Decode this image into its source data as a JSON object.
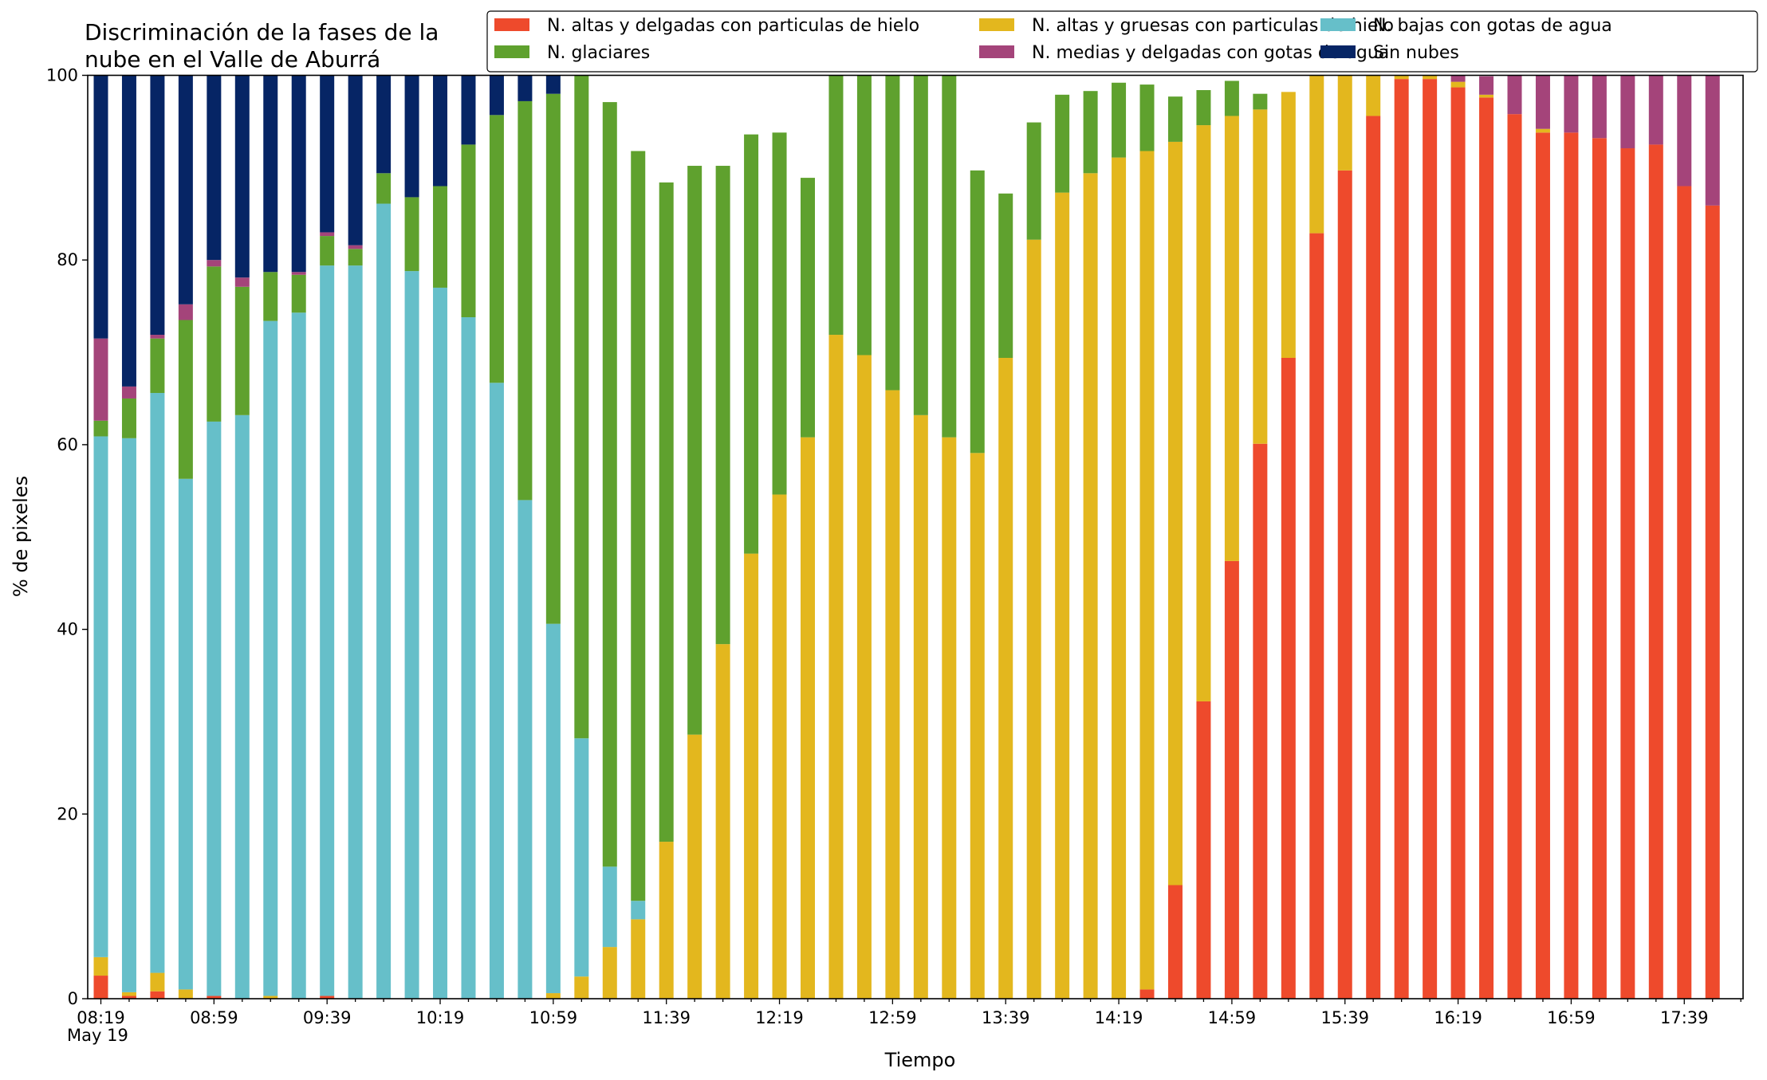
{
  "chart_data": {
    "type": "bar",
    "stacked": true,
    "title": [
      "Discriminación de la fases de la",
      "nube en el Valle de Aburrá"
    ],
    "xlabel": "Tiempo",
    "ylabel": "% de pixeles",
    "ylim": [
      0,
      100
    ],
    "yticks": [
      0,
      20,
      40,
      60,
      80,
      100
    ],
    "xtick_labels": [
      "08:19",
      "08:59",
      "09:39",
      "10:19",
      "10:59",
      "11:39",
      "12:19",
      "12:59",
      "13:39",
      "14:19",
      "14:59",
      "15:39",
      "16:19",
      "16:59",
      "17:39"
    ],
    "xtick_date": "May 19",
    "legend_position": "top-right",
    "grid": false,
    "categories": [
      "08:19",
      "08:29",
      "08:39",
      "08:49",
      "08:59",
      "09:09",
      "09:19",
      "09:29",
      "09:39",
      "09:49",
      "09:59",
      "10:09",
      "10:19",
      "10:29",
      "10:39",
      "10:49",
      "10:59",
      "11:09",
      "11:19",
      "11:29",
      "11:39",
      "11:49",
      "11:59",
      "12:09",
      "12:19",
      "12:29",
      "12:39",
      "12:49",
      "12:59",
      "13:09",
      "13:19",
      "13:29",
      "13:39",
      "13:49",
      "13:59",
      "14:09",
      "14:19",
      "14:29",
      "14:39",
      "14:49",
      "14:59",
      "15:09",
      "15:19",
      "15:29",
      "15:39",
      "15:49",
      "15:59",
      "16:09",
      "16:19",
      "16:29",
      "16:39",
      "16:49",
      "16:59",
      "17:09",
      "17:19",
      "17:29",
      "17:39",
      "17:49"
    ],
    "series": [
      {
        "name": "N. altas y delgadas con particulas de hielo",
        "color": "#ee4a2c",
        "values": [
          2.5,
          0.3,
          0.8,
          0,
          0.3,
          0,
          0,
          0,
          0.3,
          0,
          0,
          0,
          0,
          0,
          0,
          0,
          0,
          0,
          0,
          0,
          0,
          0,
          0,
          0,
          0,
          0,
          0,
          0,
          0,
          0,
          0,
          0,
          0,
          0,
          0,
          0,
          0,
          1,
          12.3,
          32.2,
          47.4,
          60.1,
          69.4,
          82.9,
          89.7,
          95.6,
          99.6,
          99.6,
          98.7,
          97.6,
          95.8,
          93.8,
          93.8,
          93.2,
          92.1,
          92.5,
          88,
          85.9
        ]
      },
      {
        "name": "N. altas y gruesas con particulas de hielo",
        "color": "#e3b71e",
        "values": [
          2,
          0.4,
          2,
          1,
          0,
          0,
          0.3,
          0,
          0,
          0,
          0,
          0,
          0,
          0,
          0,
          0,
          0.6,
          2.4,
          5.6,
          8.6,
          17,
          28.6,
          38.4,
          48.2,
          54.6,
          60.8,
          71.9,
          69.7,
          65.9,
          63.2,
          60.8,
          59.1,
          69.4,
          82.2,
          87.3,
          89.4,
          91.1,
          90.8,
          80.5,
          62.4,
          48.2,
          36.2,
          28.8,
          17.2,
          10.3,
          4.4,
          0.4,
          0.4,
          0.6,
          0.3,
          0,
          0.4,
          0,
          0,
          0,
          0,
          0,
          0
        ]
      },
      {
        "name": "N. bajas con gotas de agua",
        "color": "#66bfc9",
        "values": [
          56.4,
          60,
          62.8,
          55.3,
          62.2,
          63.2,
          73.1,
          74.3,
          79.1,
          79.4,
          86.1,
          78.8,
          77,
          73.8,
          66.7,
          54,
          40,
          25.8,
          8.7,
          2,
          0,
          0,
          0,
          0,
          0,
          0,
          0,
          0,
          0,
          0,
          0,
          0,
          0,
          0,
          0,
          0,
          0,
          0,
          0,
          0,
          0,
          0,
          0,
          0,
          0,
          0,
          0,
          0,
          0,
          0,
          0,
          0,
          0,
          0,
          0,
          0,
          0,
          0
        ]
      },
      {
        "name": "N. glaciares",
        "color": "#5fa12e",
        "values": [
          1.7,
          4.3,
          5.9,
          17.2,
          16.8,
          13.9,
          5.3,
          4.1,
          3.2,
          1.8,
          3.3,
          8,
          11,
          18.7,
          29,
          43.2,
          57.4,
          71.8,
          82.8,
          81.2,
          71.4,
          61.6,
          51.8,
          45.4,
          39.2,
          28.1,
          30.3,
          34.1,
          36.8,
          39.2,
          40.9,
          30.6,
          17.8,
          12.7,
          10.6,
          8.9,
          8.1,
          7.2,
          4.9,
          3.8,
          3.8,
          1.7,
          0,
          0,
          0,
          0,
          0,
          0,
          0,
          0,
          0,
          0,
          0,
          0,
          0,
          0,
          0,
          0
        ]
      },
      {
        "name": "N. medias y delgadas con gotas de agua",
        "color": "#a4447a",
        "values": [
          8.9,
          1.3,
          0.4,
          1.7,
          0.7,
          1,
          0,
          0.3,
          0.4,
          0.4,
          0,
          0,
          0,
          0,
          0,
          0,
          0,
          0,
          0,
          0,
          0,
          0,
          0,
          0,
          0,
          0,
          0,
          0,
          0,
          0,
          0,
          0,
          0,
          0,
          0,
          0,
          0,
          0,
          0,
          0,
          0,
          0,
          0,
          0,
          0,
          0,
          0,
          0,
          0.7,
          2,
          4.2,
          5.8,
          6.2,
          6.8,
          7.9,
          7.5,
          12,
          14.1
        ]
      },
      {
        "name": "Sin nubes",
        "color": "#062565",
        "values": [
          28.5,
          33.7,
          28.1,
          24.8,
          20,
          21.9,
          21.3,
          21.3,
          17,
          18.4,
          10.6,
          13.2,
          12,
          7.5,
          4.3,
          2.8,
          2,
          0,
          0,
          0,
          0,
          0,
          0,
          0,
          0,
          0,
          0,
          0,
          0,
          0,
          0,
          0,
          0,
          0,
          0,
          0,
          0,
          0,
          0,
          0,
          0,
          0,
          0,
          0,
          0,
          0,
          0,
          0,
          0,
          0,
          0,
          0,
          0,
          0,
          0,
          0,
          0,
          0
        ]
      }
    ],
    "legend_order": [
      0,
      1,
      2,
      3,
      4,
      5
    ]
  }
}
